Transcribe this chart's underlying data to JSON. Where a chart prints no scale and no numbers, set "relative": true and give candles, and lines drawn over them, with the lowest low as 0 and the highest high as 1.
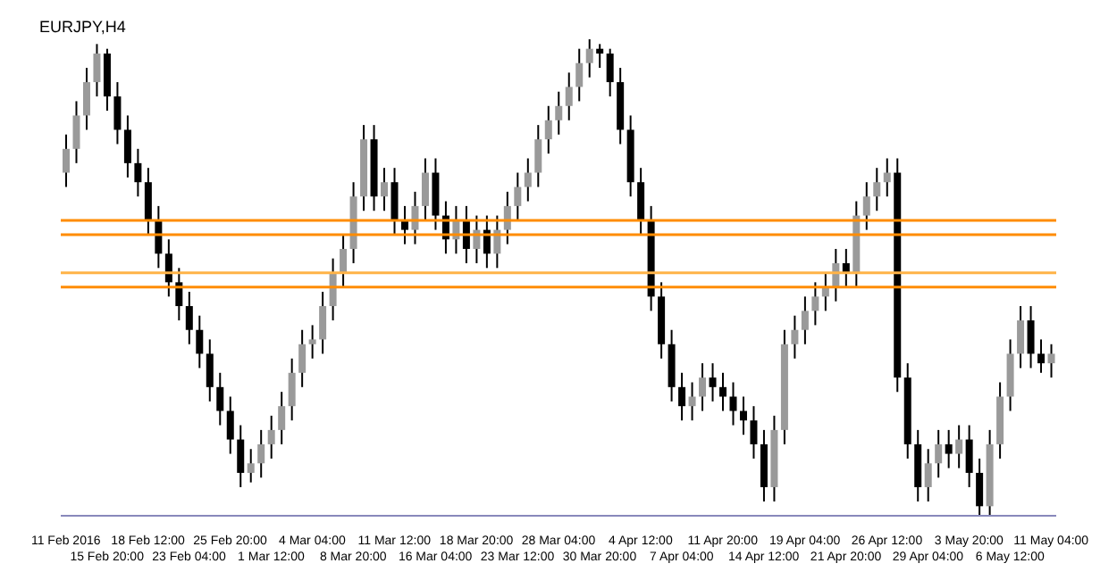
{
  "chart_data": {
    "type": "candlestick",
    "title": "EURJPY,H4",
    "relative": true,
    "grid": false,
    "categories": [
      "11 Feb 2016",
      null,
      null,
      null,
      "15 Feb 20:00",
      null,
      null,
      null,
      "18 Feb 12:00",
      null,
      null,
      null,
      "23 Feb 04:00",
      null,
      null,
      null,
      "25 Feb 20:00",
      null,
      null,
      null,
      "1 Mar 12:00",
      null,
      null,
      null,
      "4 Mar 04:00",
      null,
      null,
      null,
      "8 Mar 20:00",
      null,
      null,
      null,
      "11 Mar 12:00",
      null,
      null,
      null,
      "16 Mar 04:00",
      null,
      null,
      null,
      "18 Mar 20:00",
      null,
      null,
      null,
      "23 Mar 12:00",
      null,
      null,
      null,
      "28 Mar 04:00",
      null,
      null,
      null,
      "30 Mar 20:00",
      null,
      null,
      null,
      "4 Apr 12:00",
      null,
      null,
      null,
      "7 Apr 04:00",
      null,
      null,
      null,
      "11 Apr 20:00",
      null,
      null,
      null,
      "14 Apr 12:00",
      null,
      null,
      null,
      "19 Apr 04:00",
      null,
      null,
      null,
      "21 Apr 20:00",
      null,
      null,
      null,
      "26 Apr 12:00",
      null,
      null,
      null,
      "29 Apr 04:00",
      null,
      null,
      null,
      "3 May 20:00",
      null,
      null,
      null,
      "6 May 12:00",
      null,
      null,
      null,
      "11 May 04:00"
    ],
    "ohlc": [
      [
        0.72,
        0.8,
        0.69,
        0.77
      ],
      [
        0.77,
        0.87,
        0.74,
        0.84
      ],
      [
        0.84,
        0.94,
        0.81,
        0.91
      ],
      [
        0.91,
        0.99,
        0.88,
        0.97
      ],
      [
        0.97,
        0.98,
        0.85,
        0.88
      ],
      [
        0.88,
        0.91,
        0.78,
        0.81
      ],
      [
        0.81,
        0.84,
        0.71,
        0.74
      ],
      [
        0.74,
        0.77,
        0.67,
        0.7
      ],
      [
        0.7,
        0.73,
        0.59,
        0.62
      ],
      [
        0.62,
        0.65,
        0.52,
        0.55
      ],
      [
        0.55,
        0.58,
        0.46,
        0.49
      ],
      [
        0.49,
        0.52,
        0.41,
        0.44
      ],
      [
        0.44,
        0.47,
        0.36,
        0.39
      ],
      [
        0.39,
        0.42,
        0.31,
        0.34
      ],
      [
        0.34,
        0.37,
        0.24,
        0.27
      ],
      [
        0.27,
        0.3,
        0.19,
        0.22
      ],
      [
        0.22,
        0.25,
        0.13,
        0.16
      ],
      [
        0.16,
        0.19,
        0.06,
        0.09
      ],
      [
        0.09,
        0.14,
        0.07,
        0.11
      ],
      [
        0.11,
        0.18,
        0.08,
        0.15
      ],
      [
        0.15,
        0.21,
        0.12,
        0.18
      ],
      [
        0.18,
        0.26,
        0.15,
        0.23
      ],
      [
        0.23,
        0.33,
        0.2,
        0.3
      ],
      [
        0.3,
        0.39,
        0.27,
        0.36
      ],
      [
        0.36,
        0.4,
        0.33,
        0.37
      ],
      [
        0.37,
        0.47,
        0.34,
        0.44
      ],
      [
        0.44,
        0.54,
        0.41,
        0.51
      ],
      [
        0.51,
        0.59,
        0.48,
        0.56
      ],
      [
        0.56,
        0.7,
        0.53,
        0.67
      ],
      [
        0.67,
        0.82,
        0.64,
        0.79
      ],
      [
        0.79,
        0.82,
        0.64,
        0.67
      ],
      [
        0.67,
        0.73,
        0.64,
        0.7
      ],
      [
        0.7,
        0.73,
        0.59,
        0.62
      ],
      [
        0.62,
        0.65,
        0.57,
        0.6
      ],
      [
        0.6,
        0.68,
        0.57,
        0.65
      ],
      [
        0.65,
        0.75,
        0.62,
        0.72
      ],
      [
        0.72,
        0.75,
        0.6,
        0.63
      ],
      [
        0.63,
        0.66,
        0.55,
        0.58
      ],
      [
        0.58,
        0.65,
        0.55,
        0.62
      ],
      [
        0.62,
        0.65,
        0.53,
        0.56
      ],
      [
        0.56,
        0.63,
        0.53,
        0.6
      ],
      [
        0.6,
        0.63,
        0.52,
        0.55
      ],
      [
        0.55,
        0.63,
        0.52,
        0.6
      ],
      [
        0.6,
        0.68,
        0.57,
        0.65
      ],
      [
        0.65,
        0.72,
        0.62,
        0.69
      ],
      [
        0.69,
        0.75,
        0.66,
        0.72
      ],
      [
        0.72,
        0.82,
        0.69,
        0.79
      ],
      [
        0.79,
        0.86,
        0.76,
        0.83
      ],
      [
        0.83,
        0.89,
        0.8,
        0.86
      ],
      [
        0.86,
        0.93,
        0.83,
        0.9
      ],
      [
        0.9,
        0.98,
        0.87,
        0.95
      ],
      [
        0.95,
        1.0,
        0.92,
        0.98
      ],
      [
        0.98,
        0.99,
        0.94,
        0.97
      ],
      [
        0.97,
        0.98,
        0.88,
        0.91
      ],
      [
        0.91,
        0.94,
        0.78,
        0.81
      ],
      [
        0.81,
        0.84,
        0.67,
        0.7
      ],
      [
        0.7,
        0.73,
        0.59,
        0.62
      ],
      [
        0.62,
        0.65,
        0.43,
        0.46
      ],
      [
        0.46,
        0.49,
        0.33,
        0.36
      ],
      [
        0.36,
        0.39,
        0.24,
        0.27
      ],
      [
        0.27,
        0.3,
        0.2,
        0.23
      ],
      [
        0.23,
        0.28,
        0.2,
        0.25
      ],
      [
        0.25,
        0.32,
        0.22,
        0.29
      ],
      [
        0.29,
        0.32,
        0.24,
        0.27
      ],
      [
        0.27,
        0.3,
        0.22,
        0.25
      ],
      [
        0.25,
        0.28,
        0.19,
        0.22
      ],
      [
        0.22,
        0.25,
        0.17,
        0.2
      ],
      [
        0.2,
        0.23,
        0.12,
        0.15
      ],
      [
        0.15,
        0.18,
        0.03,
        0.06
      ],
      [
        0.06,
        0.21,
        0.03,
        0.18
      ],
      [
        0.18,
        0.39,
        0.15,
        0.36
      ],
      [
        0.36,
        0.42,
        0.33,
        0.39
      ],
      [
        0.39,
        0.46,
        0.36,
        0.43
      ],
      [
        0.43,
        0.49,
        0.4,
        0.46
      ],
      [
        0.46,
        0.51,
        0.43,
        0.48
      ],
      [
        0.48,
        0.56,
        0.45,
        0.53
      ],
      [
        0.53,
        0.56,
        0.48,
        0.51
      ],
      [
        0.51,
        0.66,
        0.48,
        0.63
      ],
      [
        0.63,
        0.7,
        0.6,
        0.67
      ],
      [
        0.67,
        0.73,
        0.64,
        0.7
      ],
      [
        0.7,
        0.75,
        0.67,
        0.72
      ],
      [
        0.72,
        0.75,
        0.26,
        0.29
      ],
      [
        0.29,
        0.32,
        0.12,
        0.15
      ],
      [
        0.15,
        0.18,
        0.03,
        0.06
      ],
      [
        0.06,
        0.14,
        0.03,
        0.11
      ],
      [
        0.11,
        0.18,
        0.08,
        0.15
      ],
      [
        0.15,
        0.18,
        0.1,
        0.13
      ],
      [
        0.13,
        0.19,
        0.1,
        0.16
      ],
      [
        0.16,
        0.19,
        0.06,
        0.09
      ],
      [
        0.09,
        0.12,
        0.0,
        0.02
      ],
      [
        0.02,
        0.18,
        0.0,
        0.15
      ],
      [
        0.15,
        0.28,
        0.12,
        0.25
      ],
      [
        0.25,
        0.37,
        0.22,
        0.34
      ],
      [
        0.34,
        0.44,
        0.31,
        0.41
      ],
      [
        0.41,
        0.44,
        0.31,
        0.34
      ],
      [
        0.34,
        0.37,
        0.3,
        0.32
      ],
      [
        0.32,
        0.36,
        0.29,
        0.34
      ]
    ],
    "ref_lines": [
      {
        "axis": "y",
        "value": 0.62,
        "color": "#ff8c00"
      },
      {
        "axis": "y",
        "value": 0.59,
        "color": "#ff8c00"
      },
      {
        "axis": "y",
        "value": 0.51,
        "color": "#ffb347"
      },
      {
        "axis": "y",
        "value": 0.48,
        "color": "#ff8c00"
      }
    ]
  }
}
